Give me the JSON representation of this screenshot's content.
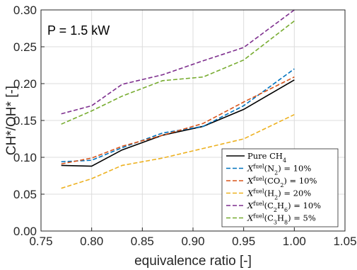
{
  "chart_data": {
    "type": "line",
    "annotation": "P = 1.5 kW",
    "xlabel": "equivalence ratio [-]",
    "ylabel": "CH*/OH* [-]",
    "xlim": [
      0.75,
      1.05
    ],
    "ylim": [
      0.0,
      0.3
    ],
    "x_ticks": [
      "0.75",
      "0.80",
      "0.85",
      "0.90",
      "0.95",
      "1.00",
      "1.05"
    ],
    "y_ticks": [
      "0.00",
      "0.05",
      "0.10",
      "0.15",
      "0.20",
      "0.25",
      "0.30"
    ],
    "grid": true,
    "legend_position": "bottom-right",
    "series": [
      {
        "name": "Pure CH4",
        "legend": [
          {
            "t": "Pure CH",
            "s": "normal"
          },
          {
            "t": "4",
            "s": "sub"
          }
        ],
        "color": "#000000",
        "dash": "solid",
        "x": [
          0.77,
          0.8,
          0.83,
          0.87,
          0.91,
          0.95,
          1.0
        ],
        "y": [
          0.089,
          0.088,
          0.11,
          0.13,
          0.142,
          0.165,
          0.205
        ]
      },
      {
        "name": "X fuel(N2) = 10%",
        "legend": [
          {
            "t": "X",
            "s": "it"
          },
          {
            "t": "fuel",
            "s": "sup"
          },
          {
            "t": "(N",
            "s": "normal"
          },
          {
            "t": "2",
            "s": "sub"
          },
          {
            "t": ") = 10%",
            "s": "normal"
          }
        ],
        "color": "#0072bd",
        "dash": "dashed",
        "x": [
          0.77,
          0.8,
          0.83,
          0.87,
          0.91,
          0.95,
          1.0
        ],
        "y": [
          0.094,
          0.096,
          0.113,
          0.133,
          0.142,
          0.17,
          0.22
        ]
      },
      {
        "name": "X fuel(CO2) = 10%",
        "legend": [
          {
            "t": "X",
            "s": "it"
          },
          {
            "t": "fuel",
            "s": "sup"
          },
          {
            "t": "(CO",
            "s": "normal"
          },
          {
            "t": "2",
            "s": "sub"
          },
          {
            "t": ") = 10%",
            "s": "normal"
          }
        ],
        "color": "#d95319",
        "dash": "dashed",
        "x": [
          0.77,
          0.8,
          0.83,
          0.87,
          0.91,
          0.95,
          1.0
        ],
        "y": [
          0.091,
          0.099,
          0.115,
          0.13,
          0.146,
          0.175,
          0.209
        ]
      },
      {
        "name": "X fuel(H2) = 20%",
        "legend": [
          {
            "t": "X",
            "s": "it"
          },
          {
            "t": "fuel",
            "s": "sup"
          },
          {
            "t": "(H",
            "s": "normal"
          },
          {
            "t": "2",
            "s": "sub"
          },
          {
            "t": ") = 20%",
            "s": "normal"
          }
        ],
        "color": "#edb120",
        "dash": "dashed",
        "x": [
          0.77,
          0.8,
          0.83,
          0.87,
          0.91,
          0.95,
          1.0
        ],
        "y": [
          0.058,
          0.071,
          0.089,
          0.099,
          0.112,
          0.125,
          0.158
        ]
      },
      {
        "name": "X fuel(C2H6) = 10%",
        "legend": [
          {
            "t": "X",
            "s": "it"
          },
          {
            "t": "fuel",
            "s": "sup"
          },
          {
            "t": "(C",
            "s": "normal"
          },
          {
            "t": "2",
            "s": "sub"
          },
          {
            "t": "H",
            "s": "normal"
          },
          {
            "t": "6",
            "s": "sub"
          },
          {
            "t": ") = 10%",
            "s": "normal"
          }
        ],
        "color": "#7e2f8e",
        "dash": "dashed",
        "x": [
          0.77,
          0.8,
          0.83,
          0.87,
          0.91,
          0.95,
          1.0
        ],
        "y": [
          0.159,
          0.17,
          0.199,
          0.212,
          0.231,
          0.249,
          0.3
        ]
      },
      {
        "name": "X fuel(C3H8) = 5%",
        "legend": [
          {
            "t": "X",
            "s": "it"
          },
          {
            "t": "fuel",
            "s": "sup"
          },
          {
            "t": "(C",
            "s": "normal"
          },
          {
            "t": "3",
            "s": "sub"
          },
          {
            "t": "H",
            "s": "normal"
          },
          {
            "t": "8",
            "s": "sub"
          },
          {
            "t": ") = 5%",
            "s": "normal"
          }
        ],
        "color": "#77ac30",
        "dash": "dashed",
        "x": [
          0.77,
          0.8,
          0.83,
          0.87,
          0.91,
          0.95,
          1.0
        ],
        "y": [
          0.145,
          0.163,
          0.183,
          0.204,
          0.209,
          0.232,
          0.285
        ]
      }
    ]
  }
}
